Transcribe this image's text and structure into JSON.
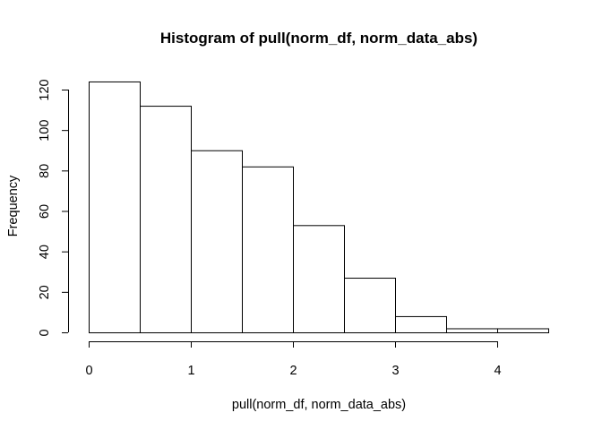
{
  "chart_data": {
    "type": "bar",
    "title": "Histogram of pull(norm_df, norm_data_abs)",
    "xlabel": "pull(norm_df, norm_data_abs)",
    "ylabel": "Frequency",
    "bins": [
      {
        "from": 0.0,
        "to": 0.5,
        "count": 124
      },
      {
        "from": 0.5,
        "to": 1.0,
        "count": 112
      },
      {
        "from": 1.0,
        "to": 1.5,
        "count": 90
      },
      {
        "from": 1.5,
        "to": 2.0,
        "count": 82
      },
      {
        "from": 2.0,
        "to": 2.5,
        "count": 53
      },
      {
        "from": 2.5,
        "to": 3.0,
        "count": 27
      },
      {
        "from": 3.0,
        "to": 3.5,
        "count": 8
      },
      {
        "from": 3.5,
        "to": 4.0,
        "count": 2
      },
      {
        "from": 4.0,
        "to": 4.5,
        "count": 2
      }
    ],
    "x_ticks": [
      "0",
      "1",
      "2",
      "3",
      "4"
    ],
    "y_ticks": [
      "0",
      "20",
      "40",
      "60",
      "80",
      "100",
      "120"
    ],
    "xlim": [
      0,
      4
    ],
    "ylim": [
      0,
      120
    ],
    "grid": false,
    "colors": {
      "bar_fill": "#ffffff",
      "bar_stroke": "#000000"
    }
  }
}
